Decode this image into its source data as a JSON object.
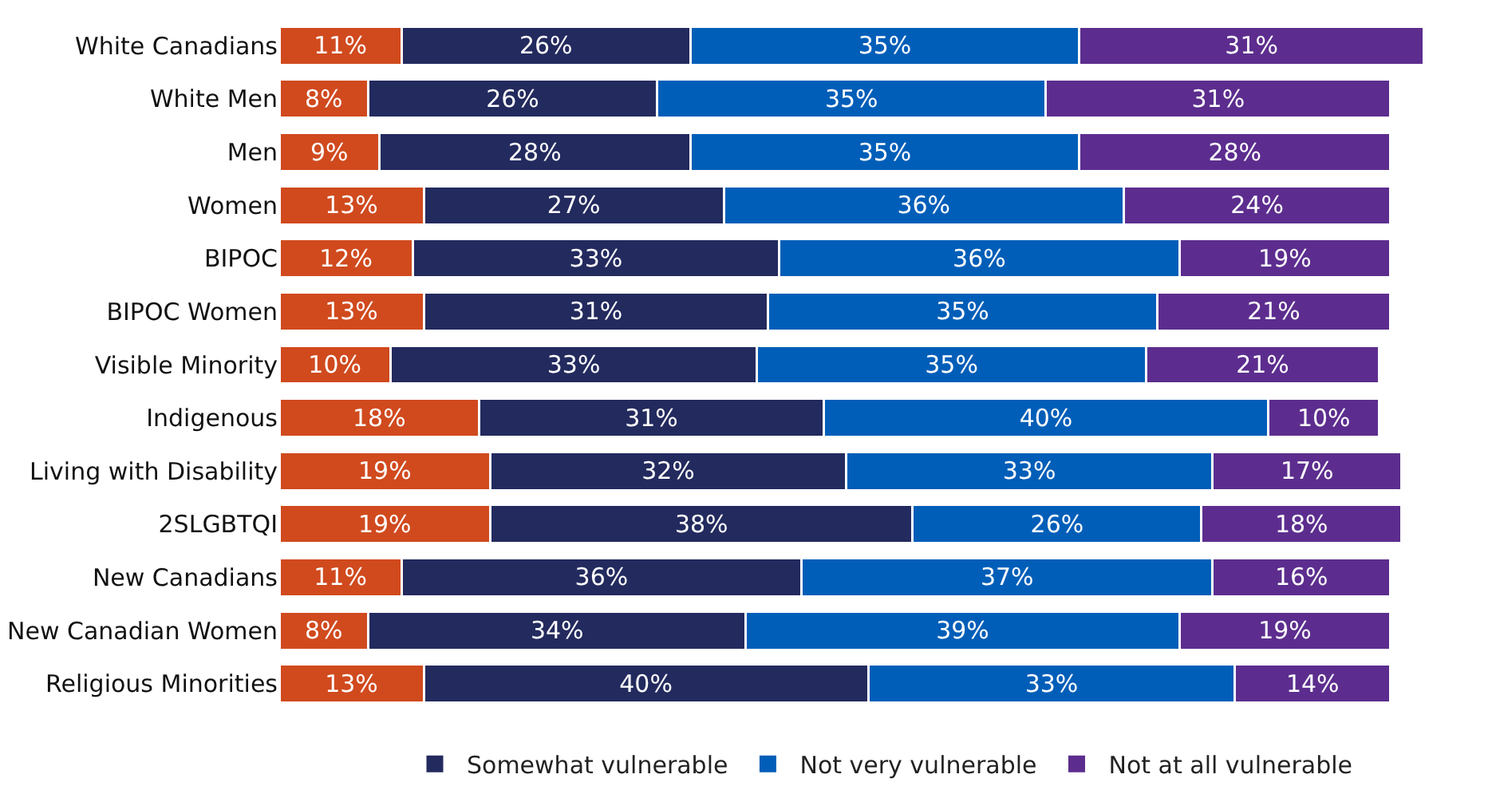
{
  "chart_data": {
    "type": "bar",
    "orientation": "horizontal",
    "stacked": true,
    "legend": "bottom",
    "tick_labels": "y",
    "categories": [
      "White Canadians",
      "White Men",
      "Men",
      "Women",
      "BIPOC",
      "BIPOC Women",
      "Visible Minority",
      "Indigenous",
      "Living with Disability",
      "2SLGBTQI",
      "New Canadians",
      "New Canadian Women",
      "Religious Minorities"
    ],
    "series": [
      {
        "color": "#d04a1e",
        "values": [
          11,
          8,
          9,
          13,
          12,
          13,
          10,
          18,
          19,
          19,
          11,
          8,
          13
        ],
        "value_labels": [
          "11%",
          "8%",
          "9%",
          "13%",
          "12%",
          "13%",
          "10%",
          "18%",
          "19%",
          "19%",
          "11%",
          "8%",
          "13%"
        ]
      },
      {
        "name": "Somewhat vulnerable",
        "color": "#232a5e",
        "values": [
          26,
          26,
          28,
          27,
          33,
          31,
          33,
          31,
          32,
          38,
          36,
          34,
          40
        ],
        "value_labels": [
          "26%",
          "26%",
          "28%",
          "27%",
          "33%",
          "31%",
          "33%",
          "31%",
          "32%",
          "38%",
          "36%",
          "34%",
          "40%"
        ]
      },
      {
        "name": "Not very vulnerable",
        "color": "#005eb8",
        "values": [
          35,
          35,
          35,
          36,
          36,
          35,
          35,
          40,
          33,
          26,
          37,
          39,
          33
        ],
        "value_labels": [
          "35%",
          "35%",
          "35%",
          "36%",
          "36%",
          "35%",
          "35%",
          "40%",
          "33%",
          "26%",
          "37%",
          "39%",
          "33%"
        ]
      },
      {
        "name": "Not at all vulnerable",
        "color": "#5c2d8e",
        "values": [
          31,
          31,
          28,
          24,
          19,
          21,
          21,
          10,
          17,
          18,
          16,
          19,
          14
        ],
        "value_labels": [
          "31%",
          "31%",
          "28%",
          "24%",
          "19%",
          "21%",
          "21%",
          "10%",
          "17%",
          "18%",
          "16%",
          "19%",
          "14%"
        ]
      }
    ]
  }
}
